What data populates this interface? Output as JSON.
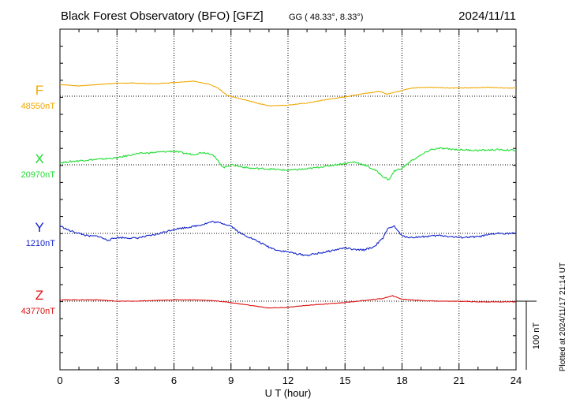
{
  "header": {
    "title": "Black Forest Observatory (BFO)  [GFZ]",
    "coords": "GG ( 48.33°,   8.33°)",
    "date": "2024/11/11"
  },
  "footer": {
    "plotted": "Plotted at 2024/11/17 21:14 UT"
  },
  "scale_bar": {
    "label": "100 nT",
    "value_nT": 100
  },
  "chart_data": {
    "type": "line",
    "title": "Black Forest Observatory (BFO)  [GFZ]",
    "xlabel": "U T (hour)",
    "ylabel": "",
    "xlim": [
      0,
      24
    ],
    "xticks": [
      0,
      3,
      6,
      9,
      12,
      15,
      18,
      21,
      24
    ],
    "grid": true,
    "series": [
      {
        "name": "F",
        "baseline_label": "48550nT",
        "baseline_nT": 48550,
        "color": "#f0a800",
        "x": [
          0,
          1,
          2,
          3,
          4,
          5,
          6,
          7,
          7.8,
          8.3,
          8.8,
          9.5,
          10,
          10.5,
          11,
          12,
          13,
          14,
          15,
          16,
          16.8,
          17.2,
          17.8,
          18.5,
          19.5,
          20.5,
          21.5,
          22.5,
          23.5,
          24
        ],
        "y": [
          48567,
          48565,
          48567,
          48569,
          48569,
          48568,
          48570,
          48572,
          48568,
          48562,
          48551,
          48546,
          48543,
          48539,
          48536,
          48537,
          48540,
          48545,
          48549,
          48554,
          48557,
          48553,
          48557,
          48562,
          48563,
          48562,
          48562,
          48563,
          48562,
          48562
        ]
      },
      {
        "name": "X",
        "baseline_label": "20970nT",
        "baseline_nT": 20970,
        "color": "#22dd33",
        "x": [
          0,
          1,
          2,
          3,
          4,
          5,
          6,
          6.5,
          7,
          7.5,
          8,
          8.3,
          8.6,
          9,
          10,
          11,
          12,
          13,
          14,
          15,
          15.5,
          16,
          16.3,
          16.6,
          17,
          17.3,
          17.6,
          18,
          18.5,
          19,
          19.5,
          20,
          21,
          22,
          23,
          24
        ],
        "y": [
          20973,
          20976,
          20978,
          20980,
          20986,
          20988,
          20990,
          20987,
          20985,
          20988,
          20986,
          20976,
          20966,
          20970,
          20965,
          20964,
          20962,
          20964,
          20968,
          20972,
          20974,
          20970,
          20966,
          20962,
          20953,
          20948,
          20961,
          20965,
          20976,
          20984,
          20992,
          20994,
          20992,
          20991,
          20992,
          20991
        ]
      },
      {
        "name": "Y",
        "baseline_label": "1210nT",
        "baseline_nT": 1210,
        "color": "#1122cc",
        "x": [
          0,
          0.5,
          1,
          1.5,
          2,
          2.5,
          3,
          4,
          5,
          6,
          7,
          7.5,
          8,
          8.5,
          9,
          9.5,
          10,
          10.5,
          11,
          11.5,
          12,
          12.5,
          13,
          14,
          15,
          15.5,
          16,
          16.5,
          17,
          17.3,
          17.6,
          18,
          18.5,
          19,
          20,
          21,
          22,
          23,
          24
        ],
        "y": [
          1221,
          1214,
          1210,
          1206,
          1206,
          1200,
          1204,
          1203,
          1208,
          1216,
          1220,
          1223,
          1227,
          1225,
          1221,
          1210,
          1204,
          1197,
          1190,
          1185,
          1183,
          1180,
          1178,
          1183,
          1189,
          1186,
          1186,
          1190,
          1203,
          1219,
          1220,
          1206,
          1204,
          1205,
          1207,
          1204,
          1205,
          1210,
          1210
        ]
      },
      {
        "name": "Z",
        "baseline_label": "43770nT",
        "baseline_nT": 43770,
        "color": "#dd1111",
        "x": [
          0,
          1,
          2,
          3,
          4,
          5,
          6,
          7,
          8,
          9,
          10,
          11,
          12,
          13,
          14,
          15,
          16,
          17,
          17.5,
          18,
          19,
          20,
          21,
          22,
          23,
          24
        ],
        "y": [
          43772,
          43772,
          43772,
          43770,
          43770,
          43771,
          43772,
          43772,
          43771,
          43768,
          43764,
          43760,
          43761,
          43764,
          43766,
          43768,
          43771,
          43774,
          43778,
          43773,
          43771,
          43770,
          43770,
          43769,
          43769,
          43769
        ]
      }
    ]
  }
}
